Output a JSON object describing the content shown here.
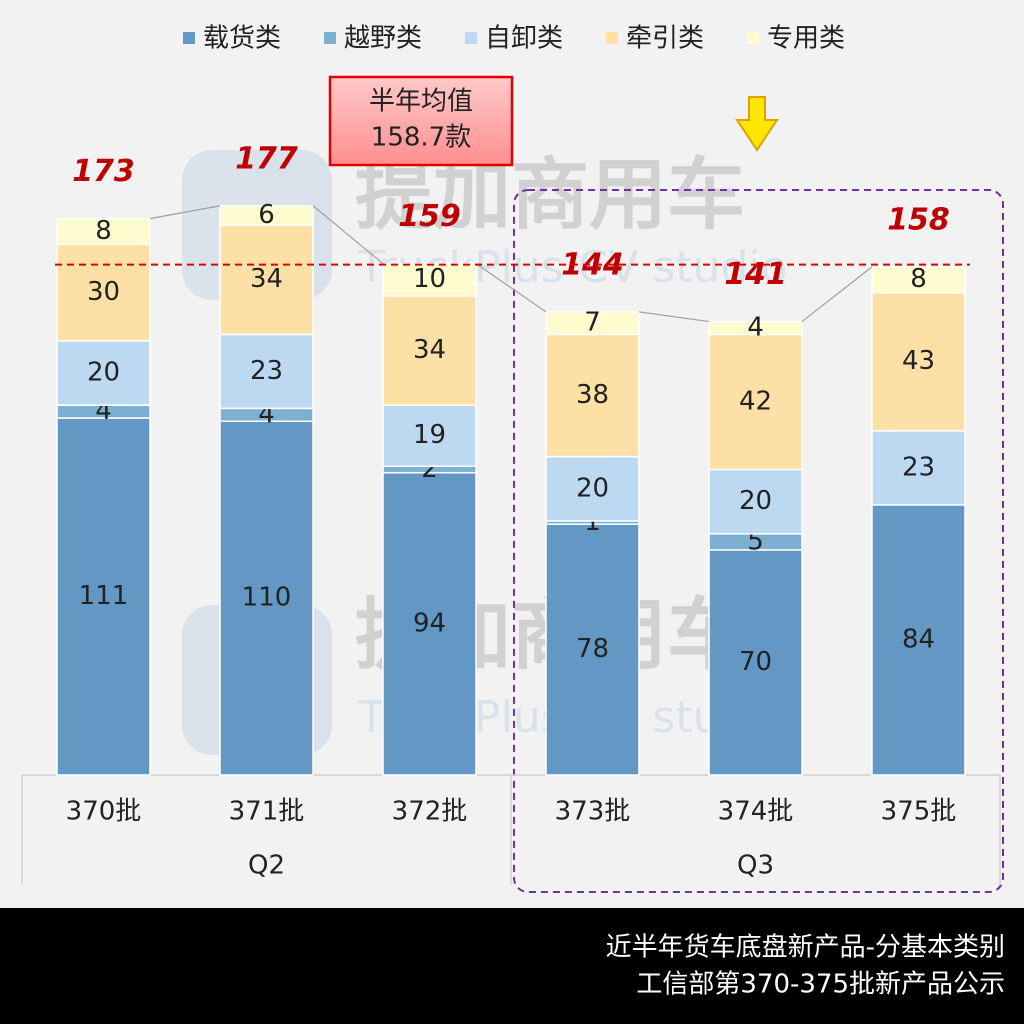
{
  "chart_data": {
    "type": "stacked-bar",
    "categories": [
      "370批",
      "371批",
      "372批",
      "373批",
      "374批",
      "375批"
    ],
    "groups": [
      {
        "name": "Q2",
        "span": [
          0,
          2
        ]
      },
      {
        "name": "Q3",
        "span": [
          3,
          5
        ]
      }
    ],
    "series": [
      {
        "name": "载货类",
        "color": "#6498c4",
        "values": [
          111,
          110,
          94,
          78,
          70,
          84
        ]
      },
      {
        "name": "越野类",
        "color": "#7cb0d0",
        "values": [
          4,
          4,
          2,
          1,
          5,
          null
        ]
      },
      {
        "name": "自卸类",
        "color": "#bdd9f1",
        "values": [
          20,
          23,
          19,
          20,
          20,
          23
        ]
      },
      {
        "name": "牵引类",
        "color": "#fde0a5",
        "values": [
          30,
          34,
          34,
          38,
          42,
          43
        ]
      },
      {
        "name": "专用类",
        "color": "#fefbce",
        "values": [
          8,
          6,
          10,
          7,
          4,
          8
        ]
      }
    ],
    "totals": [
      173,
      177,
      159,
      144,
      141,
      158
    ],
    "average": {
      "value": 158.7,
      "label": "158.7款"
    },
    "annotation": "半年均值",
    "watermark": [
      "提加商用车",
      "TruckPlus CV studio"
    ],
    "footer": [
      "近半年货车底盘新产品-分基本类别",
      "工信部第370-375批新产品公示"
    ],
    "legend": "top"
  }
}
